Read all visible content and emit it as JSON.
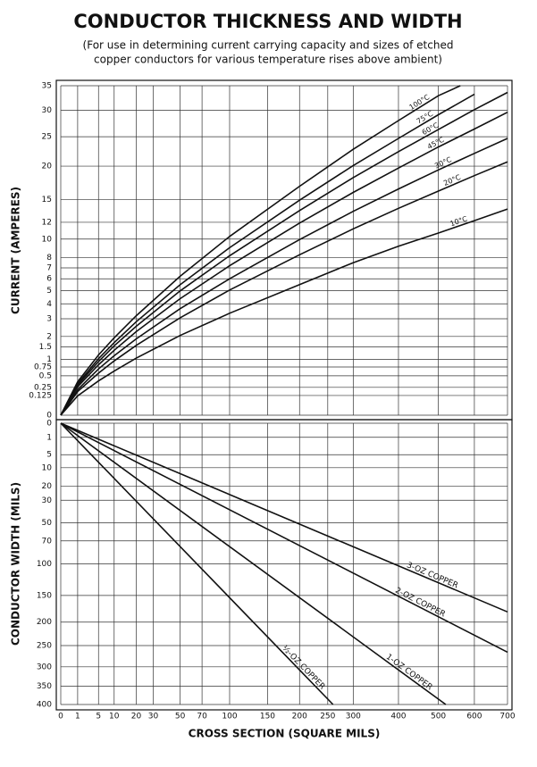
{
  "title": "CONDUCTOR THICKNESS AND WIDTH",
  "subtitle": [
    "(For use in determining current carrying capacity and sizes of etched",
    "copper conductors for various temperature rises above ambient)"
  ],
  "x_label": "CROSS SECTION (SQUARE MILS)",
  "chart_data": [
    {
      "type": "line",
      "y_label": "CURRENT (AMPERES)",
      "scale": "sqrt",
      "grid": true,
      "color": "#111111",
      "xlim": [
        0,
        700
      ],
      "xticks": [
        0,
        1,
        5,
        10,
        20,
        30,
        50,
        70,
        100,
        150,
        200,
        250,
        300,
        400,
        500,
        600,
        700
      ],
      "ylim": [
        0,
        35
      ],
      "yticks": [
        0,
        0.125,
        0.25,
        0.5,
        0.75,
        1,
        1.5,
        2,
        3,
        4,
        5,
        6,
        7,
        8,
        10,
        12,
        15,
        20,
        25,
        30,
        35
      ],
      "series": [
        {
          "name": "100°C",
          "x": [
            0,
            1,
            5,
            10,
            20,
            50,
            100,
            200,
            300,
            400,
            500,
            560
          ],
          "values": [
            0,
            0.36,
            1.17,
            1.93,
            3.19,
            6.22,
            10.3,
            16.9,
            22.8,
            28,
            32.9,
            35
          ]
        },
        {
          "name": "75°C",
          "x": [
            0,
            1,
            5,
            10,
            20,
            50,
            100,
            200,
            300,
            400,
            500,
            600
          ],
          "values": [
            0,
            0.32,
            1.03,
            1.7,
            2.82,
            5.49,
            9.05,
            14.9,
            20.1,
            24.7,
            29.1,
            33.2
          ]
        },
        {
          "name": "60°C",
          "x": [
            0,
            1,
            5,
            10,
            20,
            50,
            100,
            200,
            300,
            400,
            500,
            600,
            700
          ],
          "values": [
            0,
            0.29,
            0.93,
            1.55,
            2.55,
            4.98,
            8.2,
            13.5,
            18.2,
            22.4,
            26.3,
            30.1,
            33.6
          ]
        },
        {
          "name": "45°C",
          "x": [
            0,
            1,
            5,
            10,
            20,
            50,
            100,
            200,
            300,
            400,
            500,
            600,
            700
          ],
          "values": [
            0,
            0.26,
            0.82,
            1.36,
            2.25,
            4.38,
            7.2,
            11.9,
            16,
            19.7,
            23.2,
            26.4,
            29.6
          ]
        },
        {
          "name": "30°C",
          "x": [
            0,
            1,
            5,
            10,
            20,
            50,
            100,
            200,
            300,
            400,
            500,
            600,
            700
          ],
          "values": [
            0,
            0.21,
            0.69,
            1.14,
            1.88,
            3.66,
            6,
            9.95,
            13.4,
            16.5,
            19.4,
            22.1,
            24.7
          ]
        },
        {
          "name": "20°C",
          "x": [
            0,
            1,
            5,
            10,
            20,
            50,
            100,
            200,
            300,
            400,
            500,
            600,
            700
          ],
          "values": [
            0,
            0.18,
            0.57,
            0.95,
            1.57,
            3.06,
            5.05,
            8.3,
            11.2,
            13.8,
            16.2,
            18.5,
            20.7
          ]
        },
        {
          "name": "10°C",
          "x": [
            0,
            1,
            5,
            10,
            20,
            50,
            100,
            200,
            300,
            400,
            500,
            600,
            700
          ],
          "values": [
            0,
            0.12,
            0.38,
            0.63,
            1.05,
            2.05,
            3.35,
            5.5,
            7.5,
            9.2,
            10.7,
            12.2,
            13.7
          ]
        }
      ]
    },
    {
      "type": "line",
      "y_label": "CONDUCTOR WIDTH (MILS)",
      "scale": "sqrt",
      "grid": true,
      "y_inverted": true,
      "color": "#111111",
      "xlim": [
        0,
        700
      ],
      "xticks": [
        0,
        1,
        5,
        10,
        20,
        30,
        50,
        70,
        100,
        150,
        200,
        250,
        300,
        400,
        500,
        600,
        700
      ],
      "ylim": [
        0,
        400
      ],
      "yticks": [
        0,
        1,
        5,
        10,
        20,
        30,
        50,
        70,
        100,
        150,
        200,
        250,
        300,
        350,
        400
      ],
      "series": [
        {
          "name": "3-OZ COPPER",
          "x": [
            0,
            700
          ],
          "values": [
            0,
            180
          ]
        },
        {
          "name": "2-OZ COPPER",
          "x": [
            0,
            700
          ],
          "values": [
            0,
            265
          ]
        },
        {
          "name": "1-OZ COPPER",
          "x": [
            0,
            520
          ],
          "values": [
            0,
            400
          ]
        },
        {
          "name": "½-OZ COPPER",
          "x": [
            0,
            260
          ],
          "values": [
            0,
            400
          ]
        }
      ]
    }
  ]
}
